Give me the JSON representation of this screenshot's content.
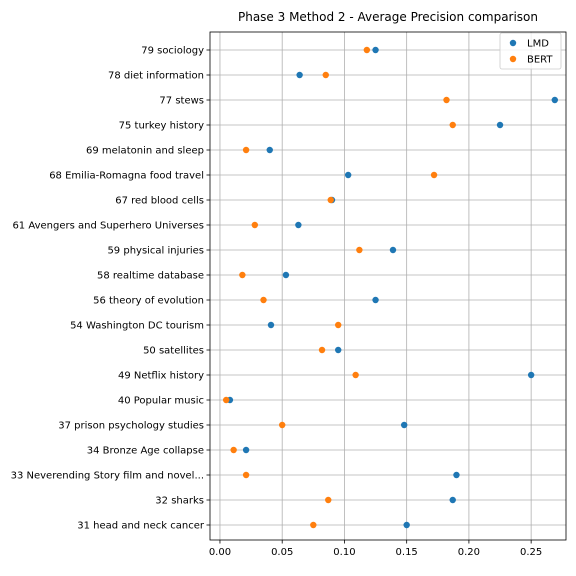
{
  "chart_data": {
    "type": "scatter",
    "title": "Phase 3 Method 2 - Average Precision comparison",
    "xlabel": "",
    "ylabel": "",
    "xlim": [
      -0.008,
      0.278
    ],
    "xticks": [
      "0.00",
      "0.05",
      "0.10",
      "0.15",
      "0.20",
      "0.25"
    ],
    "grid": true,
    "legend_position": "top-right",
    "categories": [
      "31 head and neck cancer",
      "32 sharks",
      "33 Neverending Story film and novel...",
      "34 Bronze Age collapse",
      "37 prison psychology studies",
      "40 Popular music",
      "49 Netflix history",
      "50 satellites",
      "54 Washington DC tourism",
      "56 theory of evolution",
      "58 realtime database",
      "59 physical injuries",
      "61 Avengers and Superhero Universes",
      "67 red blood cells",
      "68 Emilia-Romagna food travel",
      "69 melatonin and sleep",
      "75 turkey history",
      "77 stews",
      "78 diet information",
      "79 sociology"
    ],
    "series": [
      {
        "name": "LMD",
        "color": "#1f77b4",
        "values": [
          0.15,
          0.187,
          0.19,
          0.021,
          0.148,
          0.008,
          0.25,
          0.095,
          0.041,
          0.125,
          0.053,
          0.139,
          0.063,
          0.09,
          0.103,
          0.04,
          0.225,
          0.269,
          0.064,
          0.125
        ]
      },
      {
        "name": "BERT",
        "color": "#ff7f0e",
        "values": [
          0.075,
          0.087,
          0.021,
          0.011,
          0.05,
          0.005,
          0.109,
          0.082,
          0.095,
          0.035,
          0.018,
          0.112,
          0.028,
          0.089,
          0.172,
          0.021,
          0.187,
          0.182,
          0.085,
          0.118
        ]
      }
    ]
  }
}
